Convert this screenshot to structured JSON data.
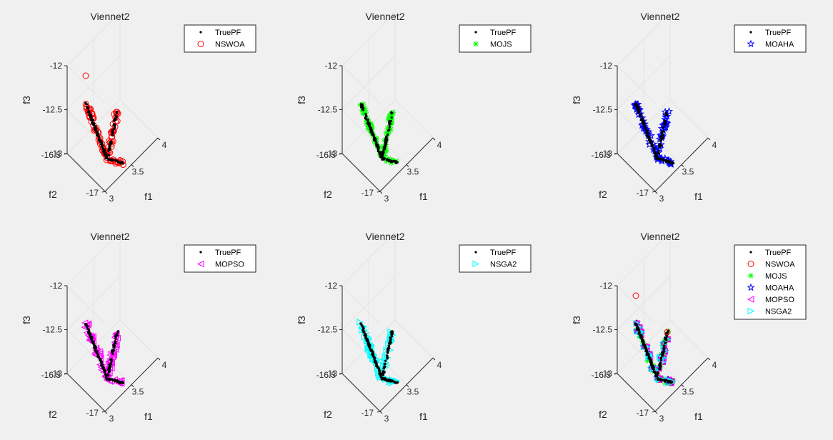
{
  "chart_data": [
    {
      "type": "scatter3d",
      "title": "Viennet2",
      "xlabel": "f1",
      "ylabel": "f2",
      "zlabel": "f3",
      "xlim": [
        3,
        4
      ],
      "ylim": [
        -17,
        -16.5
      ],
      "zlim": [
        -13,
        -12
      ],
      "xticks": [
        "3",
        "3.5",
        "4"
      ],
      "yticks": [
        "-17",
        "-16.5"
      ],
      "zticks": [
        "-13",
        "-12.5",
        "-12"
      ],
      "grid": true,
      "legend": "outside-top-right",
      "series": [
        {
          "name": "TruePF",
          "marker": "dot",
          "color": "#000000"
        },
        {
          "name": "NSWOA",
          "marker": "circle",
          "color": "#ff0000"
        }
      ]
    },
    {
      "type": "scatter3d",
      "title": "Viennet2",
      "xlabel": "f1",
      "ylabel": "f2",
      "zlabel": "f3",
      "xlim": [
        3,
        4
      ],
      "ylim": [
        -17,
        -16.5
      ],
      "zlim": [
        -13,
        -12
      ],
      "xticks": [
        "3",
        "3.5",
        "4"
      ],
      "yticks": [
        "-17",
        "-16.5"
      ],
      "zticks": [
        "-13",
        "-12.5",
        "-12"
      ],
      "grid": true,
      "legend": "outside-top-right",
      "series": [
        {
          "name": "TruePF",
          "marker": "dot",
          "color": "#000000"
        },
        {
          "name": "MOJS",
          "marker": "asterisk",
          "color": "#00ff00"
        }
      ]
    },
    {
      "type": "scatter3d",
      "title": "Viennet2",
      "xlabel": "f1",
      "ylabel": "f2",
      "zlabel": "f3",
      "xlim": [
        3,
        4
      ],
      "ylim": [
        -17,
        -16.5
      ],
      "zlim": [
        -13,
        -12
      ],
      "xticks": [
        "3",
        "3.5",
        "4"
      ],
      "yticks": [
        "-17",
        "-16.5"
      ],
      "zticks": [
        "-13",
        "-12.5",
        "-12"
      ],
      "grid": true,
      "legend": "outside-top-right",
      "series": [
        {
          "name": "TruePF",
          "marker": "dot",
          "color": "#000000"
        },
        {
          "name": "MOAHA",
          "marker": "pentagram",
          "color": "#0000ff"
        }
      ]
    },
    {
      "type": "scatter3d",
      "title": "Viennet2",
      "xlabel": "f1",
      "ylabel": "f2",
      "zlabel": "f3",
      "xlim": [
        3,
        4
      ],
      "ylim": [
        -17,
        -16.5
      ],
      "zlim": [
        -13,
        -12
      ],
      "xticks": [
        "3",
        "3.5",
        "4"
      ],
      "yticks": [
        "-17",
        "-16.5"
      ],
      "zticks": [
        "-13",
        "-12.5",
        "-12"
      ],
      "grid": true,
      "legend": "outside-top-right",
      "series": [
        {
          "name": "TruePF",
          "marker": "dot",
          "color": "#000000"
        },
        {
          "name": "MOPSO",
          "marker": "triangle-left",
          "color": "#ff00ff"
        }
      ]
    },
    {
      "type": "scatter3d",
      "title": "Viennet2",
      "xlabel": "f1",
      "ylabel": "f2",
      "zlabel": "f3",
      "xlim": [
        3,
        4
      ],
      "ylim": [
        -17,
        -16.5
      ],
      "zlim": [
        -13,
        -12
      ],
      "xticks": [
        "3",
        "3.5",
        "4"
      ],
      "yticks": [
        "-17",
        "-16.5"
      ],
      "zticks": [
        "-13",
        "-12.5",
        "-12"
      ],
      "grid": true,
      "legend": "outside-top-right",
      "series": [
        {
          "name": "TruePF",
          "marker": "dot",
          "color": "#000000"
        },
        {
          "name": "NSGA2",
          "marker": "triangle-right",
          "color": "#00ffff"
        }
      ]
    },
    {
      "type": "scatter3d",
      "title": "Viennet2",
      "xlabel": "f1",
      "ylabel": "f2",
      "zlabel": "f3",
      "xlim": [
        3,
        4
      ],
      "ylim": [
        -17,
        -16.5
      ],
      "zlim": [
        -13,
        -12
      ],
      "xticks": [
        "3",
        "3.5",
        "4"
      ],
      "yticks": [
        "-17",
        "-16.5"
      ],
      "zticks": [
        "-13",
        "-12.5",
        "-12"
      ],
      "grid": true,
      "legend": "outside-top-right",
      "series": [
        {
          "name": "TruePF",
          "marker": "dot",
          "color": "#000000"
        },
        {
          "name": "NSWOA",
          "marker": "circle",
          "color": "#ff0000"
        },
        {
          "name": "MOJS",
          "marker": "asterisk",
          "color": "#00ff00"
        },
        {
          "name": "MOAHA",
          "marker": "pentagram",
          "color": "#0000ff"
        },
        {
          "name": "MOPSO",
          "marker": "triangle-left",
          "color": "#ff00ff"
        },
        {
          "name": "NSGA2",
          "marker": "triangle-right",
          "color": "#00ffff"
        }
      ]
    }
  ]
}
